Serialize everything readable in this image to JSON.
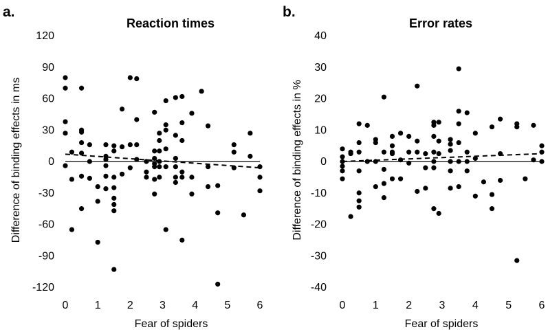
{
  "chart_data": [
    {
      "panel": "a.",
      "type": "scatter",
      "title": "Reaction times",
      "xlabel": "Fear of spiders",
      "ylabel": "Difference of binding effects in ms",
      "xlim": [
        0,
        6
      ],
      "ylim": [
        -120,
        120
      ],
      "xticks": [
        "0",
        "1",
        "2",
        "3",
        "4",
        "5",
        "6"
      ],
      "yticks": [
        "120",
        "90",
        "60",
        "30",
        "0",
        "-30",
        "-60",
        "-90",
        "-120"
      ],
      "zero_line": true,
      "trend_line": {
        "style": "dashed",
        "x": [
          0,
          6
        ],
        "y": [
          7,
          -6
        ]
      },
      "points": [
        [
          0,
          80
        ],
        [
          0,
          70
        ],
        [
          0,
          38
        ],
        [
          0,
          27
        ],
        [
          0,
          -4
        ],
        [
          0.2,
          9
        ],
        [
          0.2,
          -17
        ],
        [
          0.2,
          -65
        ],
        [
          0.5,
          70
        ],
        [
          0.5,
          30
        ],
        [
          0.5,
          28
        ],
        [
          0.5,
          18
        ],
        [
          0.5,
          8
        ],
        [
          0.5,
          -14
        ],
        [
          0.5,
          -45
        ],
        [
          0.75,
          16
        ],
        [
          0.75,
          0
        ],
        [
          0.75,
          -16
        ],
        [
          1,
          -24
        ],
        [
          1,
          -38
        ],
        [
          1,
          -77
        ],
        [
          1.25,
          16
        ],
        [
          1.25,
          5
        ],
        [
          1.25,
          2
        ],
        [
          1.25,
          -4
        ],
        [
          1.25,
          -14
        ],
        [
          1.25,
          -26
        ],
        [
          1.5,
          15
        ],
        [
          1.5,
          10
        ],
        [
          1.5,
          -15
        ],
        [
          1.5,
          -25
        ],
        [
          1.5,
          -35
        ],
        [
          1.5,
          -41
        ],
        [
          1.5,
          -47
        ],
        [
          1.5,
          -103
        ],
        [
          1.75,
          50
        ],
        [
          1.75,
          14
        ],
        [
          1.75,
          -12
        ],
        [
          2,
          80
        ],
        [
          2,
          16
        ],
        [
          2,
          -6
        ],
        [
          2.2,
          79
        ],
        [
          2.2,
          40
        ],
        [
          2.2,
          16
        ],
        [
          2.2,
          2
        ],
        [
          2.5,
          0
        ],
        [
          2.5,
          -10
        ],
        [
          2.5,
          -15
        ],
        [
          2.75,
          47
        ],
        [
          2.75,
          10
        ],
        [
          2.75,
          3
        ],
        [
          2.75,
          -2
        ],
        [
          2.75,
          -5
        ],
        [
          2.75,
          -17
        ],
        [
          2.75,
          -31
        ],
        [
          2.9,
          27
        ],
        [
          2.9,
          20
        ],
        [
          2.9,
          10
        ],
        [
          2.9,
          0
        ],
        [
          2.9,
          -5
        ],
        [
          2.9,
          -15
        ],
        [
          3.1,
          58
        ],
        [
          3.1,
          35
        ],
        [
          3.1,
          30
        ],
        [
          3.1,
          12
        ],
        [
          3.1,
          -5
        ],
        [
          3.1,
          -65
        ],
        [
          3.4,
          61
        ],
        [
          3.4,
          25
        ],
        [
          3.4,
          3
        ],
        [
          3.4,
          -5
        ],
        [
          3.4,
          -15
        ],
        [
          3.4,
          -20
        ],
        [
          3.6,
          62
        ],
        [
          3.6,
          37
        ],
        [
          3.6,
          20
        ],
        [
          3.6,
          -10
        ],
        [
          3.6,
          -15
        ],
        [
          3.6,
          -75
        ],
        [
          3.9,
          46
        ],
        [
          3.9,
          -15
        ],
        [
          3.9,
          -31
        ],
        [
          4.2,
          67
        ],
        [
          4.4,
          34
        ],
        [
          4.4,
          -5
        ],
        [
          4.4,
          -24
        ],
        [
          4.7,
          -23
        ],
        [
          4.7,
          -49
        ],
        [
          4.7,
          -117
        ],
        [
          5.2,
          16
        ],
        [
          5.2,
          9
        ],
        [
          5.2,
          -6
        ],
        [
          5.5,
          -51
        ],
        [
          5.7,
          27
        ],
        [
          5.7,
          5
        ],
        [
          6,
          -5
        ],
        [
          6,
          -15
        ],
        [
          6,
          -28
        ]
      ]
    },
    {
      "panel": "b.",
      "type": "scatter",
      "title": "Error rates",
      "xlabel": "Fear of spiders",
      "ylabel": "Difference of binding effects in %",
      "xlim": [
        0,
        6
      ],
      "ylim": [
        -40,
        40
      ],
      "xticks": [
        "0",
        "1",
        "2",
        "3",
        "4",
        "5",
        "6"
      ],
      "yticks": [
        "40",
        "30",
        "20",
        "10",
        "0",
        "-10",
        "-20",
        "-30",
        "-40"
      ],
      "zero_line": true,
      "trend_line": {
        "style": "dashed",
        "x": [
          0,
          6
        ],
        "y": [
          0,
          2.5
        ]
      },
      "points": [
        [
          0,
          4
        ],
        [
          0,
          1.5
        ],
        [
          0,
          0
        ],
        [
          0,
          -1.5
        ],
        [
          0,
          -3
        ],
        [
          0,
          -5.5
        ],
        [
          0.25,
          3
        ],
        [
          0.25,
          2.5
        ],
        [
          0.25,
          -17.5
        ],
        [
          0.5,
          12
        ],
        [
          0.5,
          6
        ],
        [
          0.5,
          3
        ],
        [
          0.5,
          -3
        ],
        [
          0.5,
          -10
        ],
        [
          0.5,
          -12.5
        ],
        [
          0.5,
          -14.5
        ],
        [
          0.75,
          11.5
        ],
        [
          0.75,
          0
        ],
        [
          1,
          7
        ],
        [
          1,
          6
        ],
        [
          1,
          0
        ],
        [
          1,
          -8
        ],
        [
          1.25,
          20.5
        ],
        [
          1.25,
          3
        ],
        [
          1.25,
          -2.5
        ],
        [
          1.25,
          -7
        ],
        [
          1.25,
          -11.5
        ],
        [
          1.5,
          8
        ],
        [
          1.5,
          5
        ],
        [
          1.5,
          3
        ],
        [
          1.5,
          2.5
        ],
        [
          1.5,
          -5.5
        ],
        [
          1.75,
          9
        ],
        [
          1.75,
          0.5
        ],
        [
          1.75,
          -5.5
        ],
        [
          2,
          8
        ],
        [
          2,
          3
        ],
        [
          2,
          -0.5
        ],
        [
          2.25,
          24
        ],
        [
          2.25,
          6.5
        ],
        [
          2.25,
          3
        ],
        [
          2.25,
          -9.5
        ],
        [
          2.5,
          2.5
        ],
        [
          2.5,
          -2
        ],
        [
          2.5,
          -8.5
        ],
        [
          2.75,
          12.5
        ],
        [
          2.75,
          11.5
        ],
        [
          2.75,
          8
        ],
        [
          2.75,
          3
        ],
        [
          2.75,
          0
        ],
        [
          2.75,
          -2
        ],
        [
          2.75,
          -15
        ],
        [
          2.9,
          12.5
        ],
        [
          2.9,
          6.5
        ],
        [
          2.9,
          2.5
        ],
        [
          2.9,
          -16.5
        ],
        [
          3.25,
          7
        ],
        [
          3.25,
          5.5
        ],
        [
          3.25,
          3.5
        ],
        [
          3.25,
          0
        ],
        [
          3.25,
          -3
        ],
        [
          3.25,
          -8.5
        ],
        [
          3.5,
          29.5
        ],
        [
          3.5,
          16
        ],
        [
          3.5,
          12
        ],
        [
          3.5,
          6
        ],
        [
          3.5,
          0
        ],
        [
          3.5,
          -8
        ],
        [
          3.75,
          15.5
        ],
        [
          3.75,
          3
        ],
        [
          3.75,
          0
        ],
        [
          3.75,
          -3
        ],
        [
          4,
          9
        ],
        [
          4,
          1
        ],
        [
          4,
          -11
        ],
        [
          4.25,
          -6.5
        ],
        [
          4.5,
          11
        ],
        [
          4.5,
          -10.5
        ],
        [
          4.5,
          -15
        ],
        [
          4.75,
          13.5
        ],
        [
          4.75,
          2.5
        ],
        [
          4.75,
          -6
        ],
        [
          5.25,
          12
        ],
        [
          5.25,
          11
        ],
        [
          5.25,
          -31.5
        ],
        [
          5.5,
          -5.5
        ],
        [
          5.75,
          11.5
        ],
        [
          5.75,
          0.5
        ],
        [
          6,
          5
        ],
        [
          6,
          3
        ],
        [
          6,
          0
        ]
      ]
    }
  ]
}
